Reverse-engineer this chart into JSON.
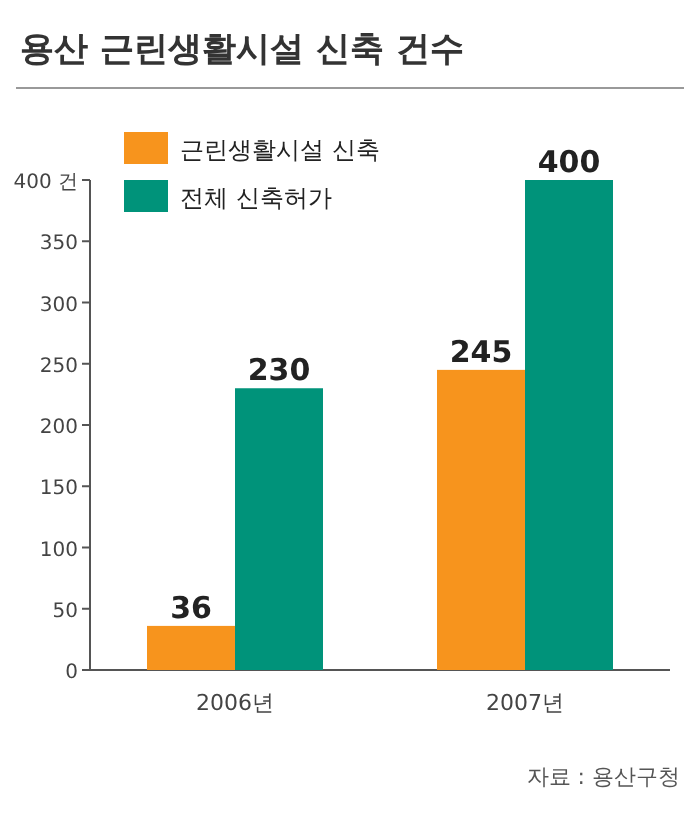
{
  "chart_data": {
    "type": "bar",
    "title": "용산 근린생활시설 신축 건수",
    "categories": [
      "2006년",
      "2007년"
    ],
    "series": [
      {
        "name": "근린생활시설 신축",
        "color": "#f7941d",
        "values": [
          36,
          245
        ]
      },
      {
        "name": "전체 신축허가",
        "color": "#00937a",
        "values": [
          230,
          400
        ]
      }
    ],
    "ylim": [
      0,
      400
    ],
    "yticks": [
      0,
      50,
      100,
      150,
      200,
      250,
      300,
      350,
      {
        "value": 400,
        "label": "400 건"
      }
    ],
    "data_labels": true,
    "legend": "top left",
    "grid": false,
    "annotations": [
      "자료 : 용산구청"
    ]
  }
}
